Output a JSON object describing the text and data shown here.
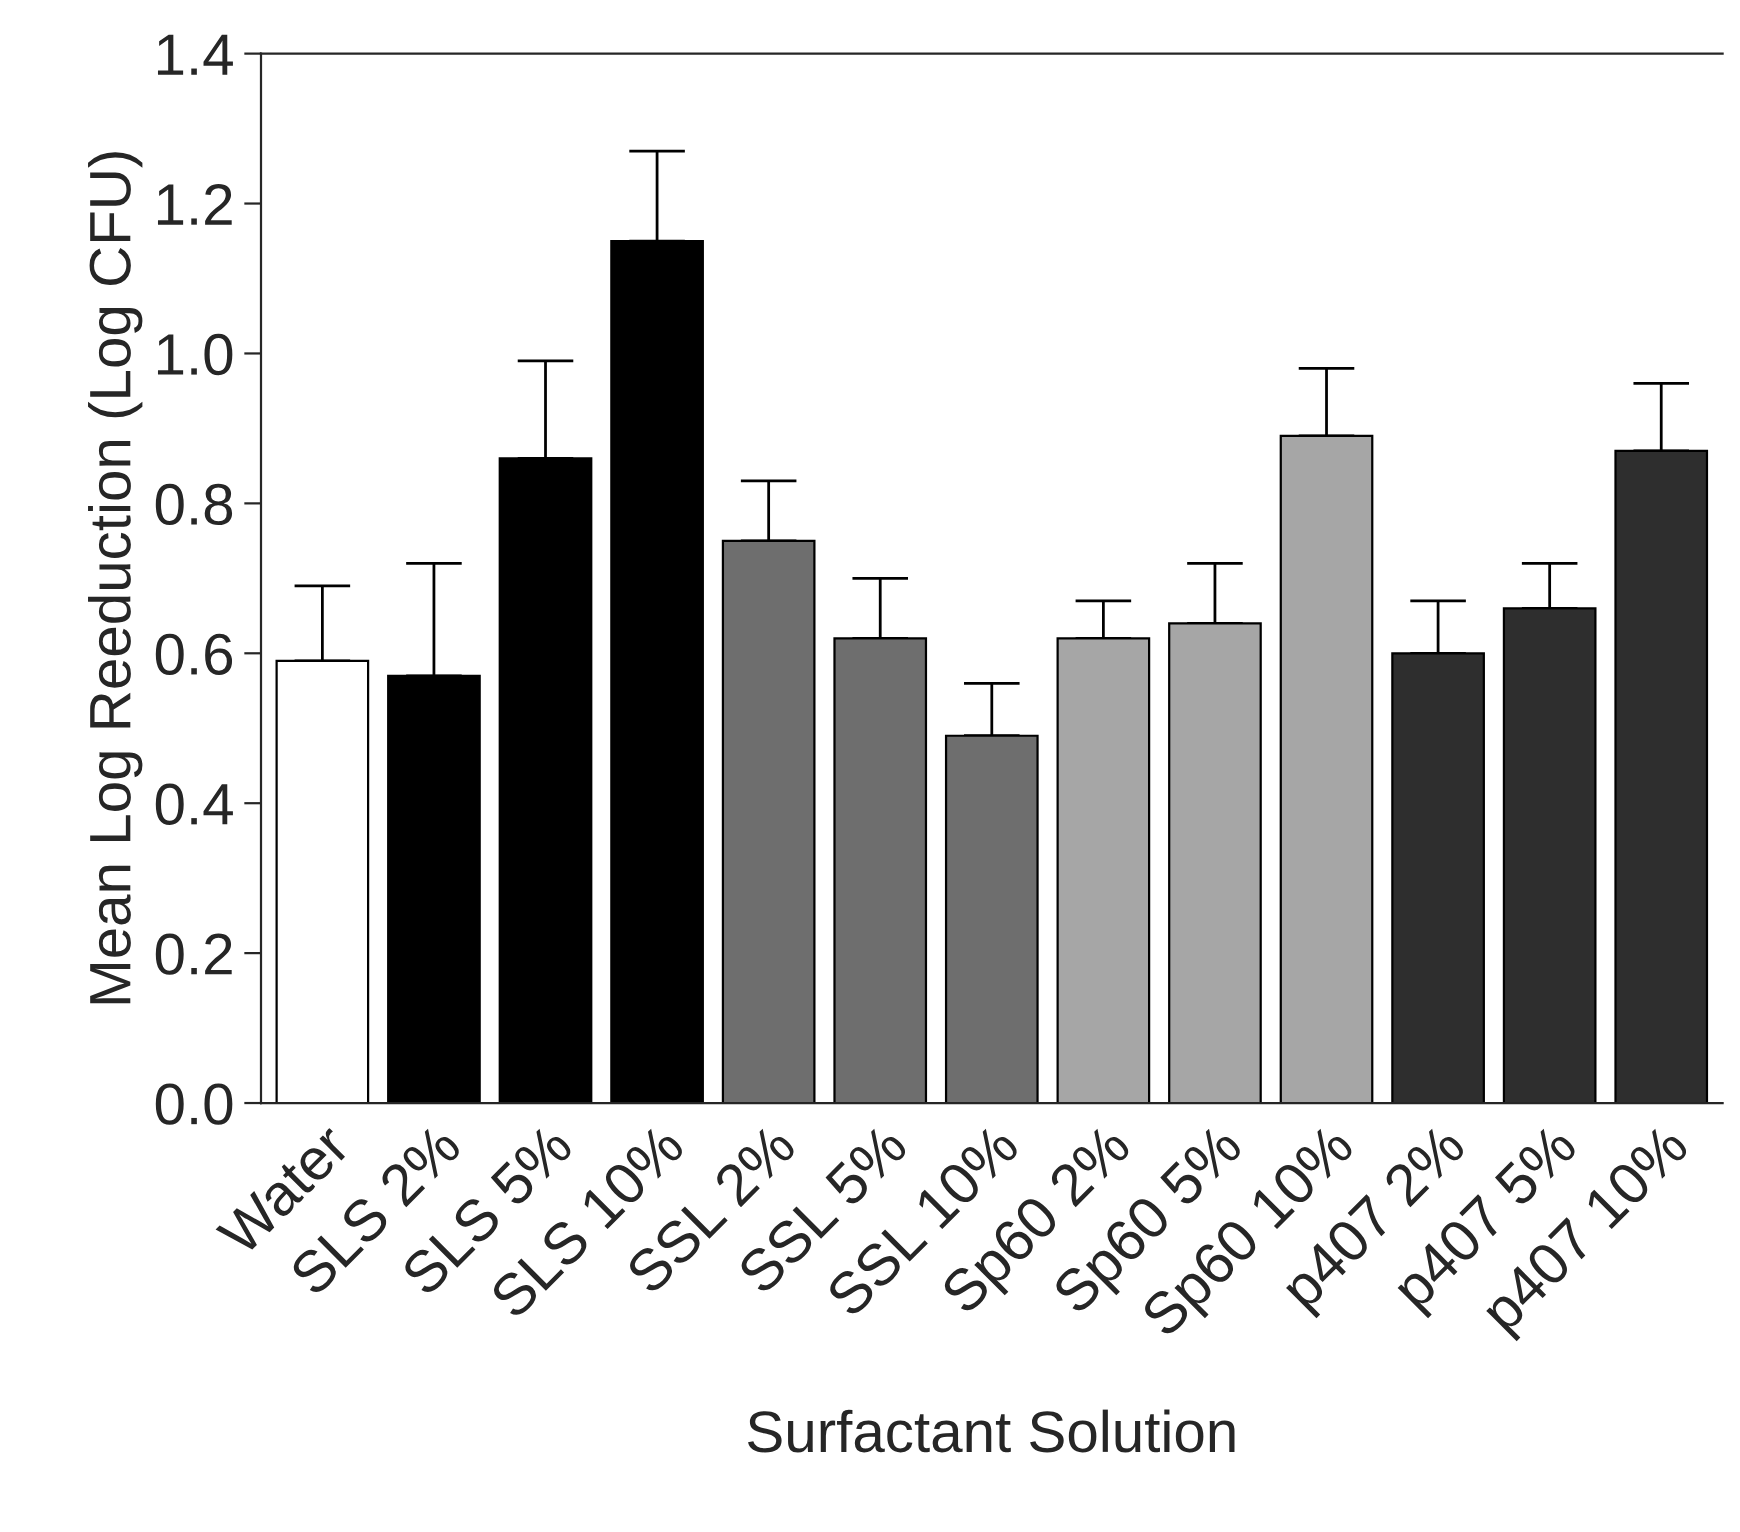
{
  "chart_data": {
    "type": "bar",
    "xlabel": "Surfactant Solution",
    "ylabel": "Mean Log Reeduction (Log CFU)",
    "categories": [
      "Water",
      "SLS 2%",
      "SLS 5%",
      "SLS 10%",
      "SSL 2%",
      "SSL 5%",
      "SSL 10%",
      "Sp60 2%",
      "Sp60 5%",
      "Sp60 10%",
      "p407 2%",
      "p407 5%",
      "p407 10%"
    ],
    "values": [
      0.59,
      0.57,
      0.86,
      1.15,
      0.75,
      0.62,
      0.49,
      0.62,
      0.64,
      0.89,
      0.6,
      0.66,
      0.87
    ],
    "errors": [
      [
        0.59,
        0.69
      ],
      [
        0.57,
        0.72
      ],
      [
        0.86,
        0.99
      ],
      [
        1.15,
        1.27
      ],
      [
        0.75,
        0.83
      ],
      [
        0.62,
        0.7
      ],
      [
        0.49,
        0.56
      ],
      [
        0.62,
        0.67
      ],
      [
        0.64,
        0.72
      ],
      [
        0.89,
        0.98
      ],
      [
        0.6,
        0.67
      ],
      [
        0.66,
        0.72
      ],
      [
        0.87,
        0.96
      ]
    ],
    "colors": [
      "#ffffff",
      "#000000",
      "#000000",
      "#000000",
      "#6e6e6e",
      "#6e6e6e",
      "#6e6e6e",
      "#a6a6a6",
      "#a6a6a6",
      "#a6a6a6",
      "#2e2e2e",
      "#2e2e2e",
      "#2e2e2e"
    ],
    "ylim": [
      0,
      1.4
    ],
    "yticks": [
      {
        "value": 0,
        "label": "0.0"
      },
      0.2,
      0.4,
      0.6,
      0.8,
      {
        "value": 1,
        "label": "1.0"
      },
      1.2,
      1.4
    ],
    "grid": false,
    "legend": false
  }
}
